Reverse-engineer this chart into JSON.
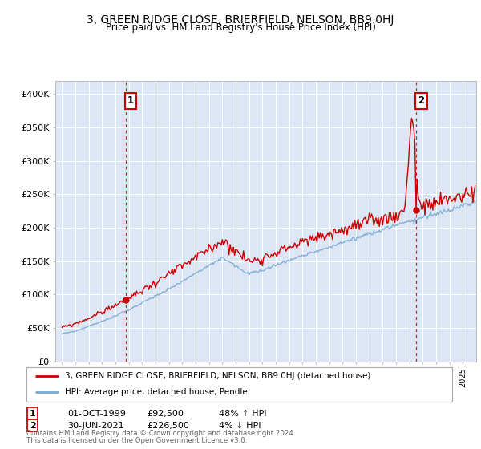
{
  "title": "3, GREEN RIDGE CLOSE, BRIERFIELD, NELSON, BB9 0HJ",
  "subtitle": "Price paid vs. HM Land Registry's House Price Index (HPI)",
  "legend_line1": "3, GREEN RIDGE CLOSE, BRIERFIELD, NELSON, BB9 0HJ (detached house)",
  "legend_line2": "HPI: Average price, detached house, Pendle",
  "annotation1_date": "01-OCT-1999",
  "annotation1_price": "£92,500",
  "annotation1_hpi": "48% ↑ HPI",
  "annotation2_date": "30-JUN-2021",
  "annotation2_price": "£226,500",
  "annotation2_hpi": "4% ↓ HPI",
  "footer": "Contains HM Land Registry data © Crown copyright and database right 2024.\nThis data is licensed under the Open Government Licence v3.0.",
  "sale1_x": 1999.75,
  "sale1_y": 92500,
  "sale2_x": 2021.5,
  "sale2_y": 226500,
  "red_line_color": "#cc0000",
  "blue_line_color": "#7aaad0",
  "background_color": "#dce6f5",
  "ylim_min": 0,
  "ylim_max": 420000,
  "xlim_min": 1994.5,
  "xlim_max": 2026.0,
  "yticks": [
    0,
    50000,
    100000,
    150000,
    200000,
    250000,
    300000,
    350000,
    400000
  ],
  "ytick_labels": [
    "£0",
    "£50K",
    "£100K",
    "£150K",
    "£200K",
    "£250K",
    "£300K",
    "£350K",
    "£400K"
  ]
}
